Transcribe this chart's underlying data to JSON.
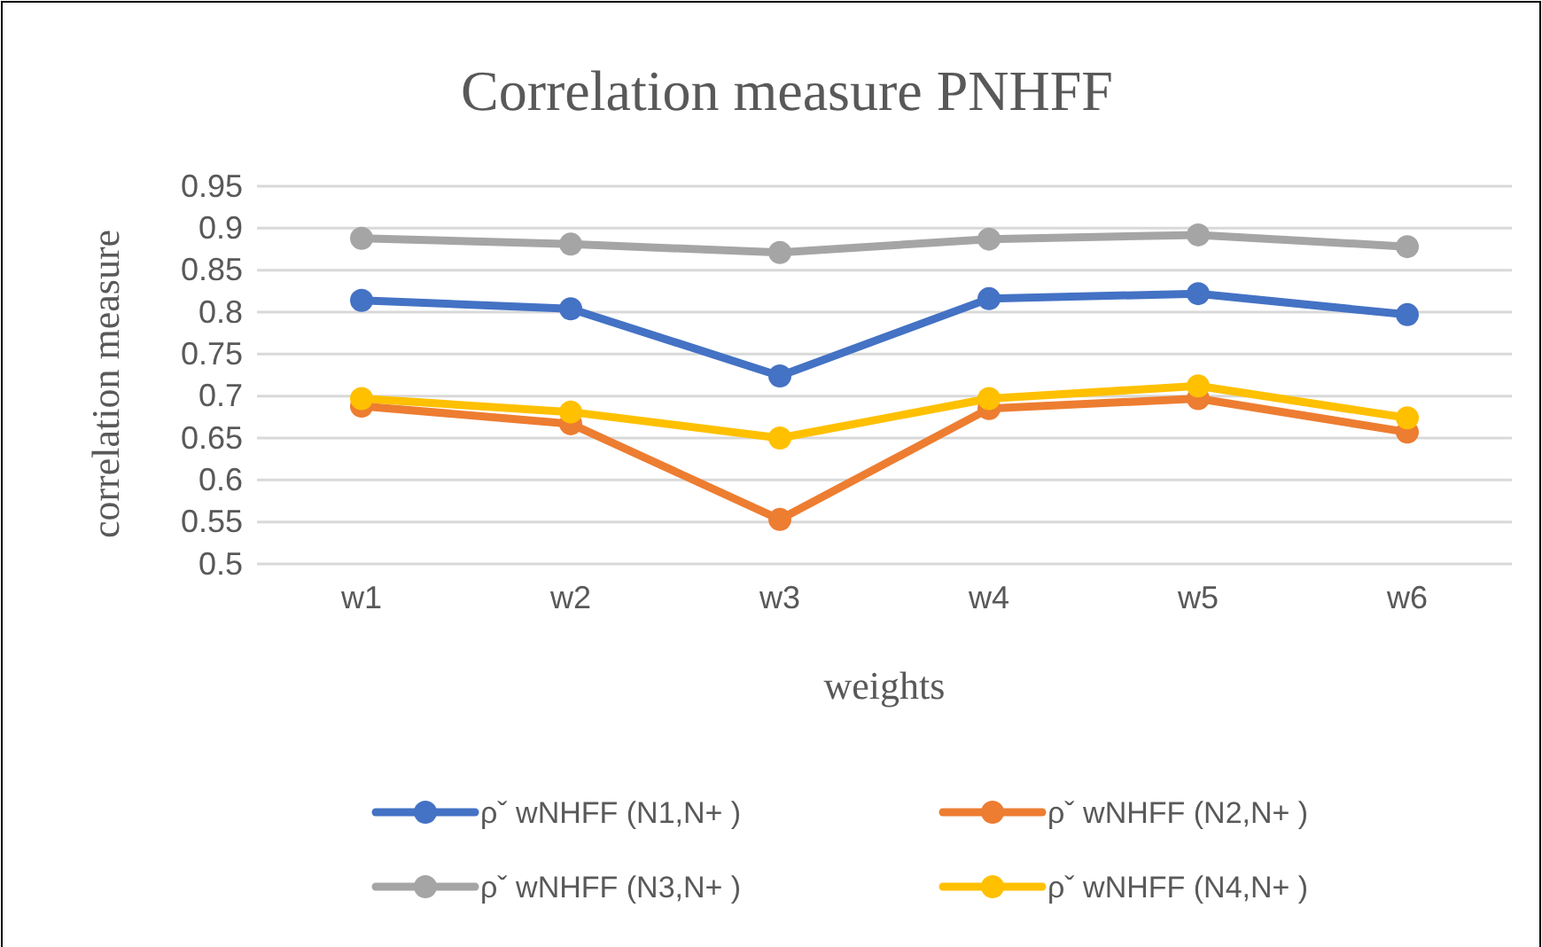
{
  "chart_data": {
    "type": "line",
    "title": "Correlation measure PNHFF",
    "xlabel": "weights",
    "ylabel": "correlation measure",
    "categories": [
      "w1",
      "w2",
      "w3",
      "w4",
      "w5",
      "w6"
    ],
    "series": [
      {
        "name": "ρˇ wNHFF (N1,N+ )",
        "color": "#4472c4",
        "values": [
          0.814,
          0.804,
          0.724,
          0.816,
          0.822,
          0.797
        ]
      },
      {
        "name": "ρˇ wNHFF (N2,N+ )",
        "color": "#ed7d31",
        "values": [
          0.688,
          0.667,
          0.553,
          0.685,
          0.697,
          0.657
        ]
      },
      {
        "name": "ρˇ wNHFF (N3,N+ )",
        "color": "#a5a5a5",
        "values": [
          0.888,
          0.881,
          0.871,
          0.887,
          0.892,
          0.878
        ]
      },
      {
        "name": "ρˇ wNHFF (N4,N+ )",
        "color": "#ffc000",
        "values": [
          0.697,
          0.681,
          0.65,
          0.697,
          0.712,
          0.674
        ]
      }
    ],
    "ylim": [
      0.5,
      0.95
    ],
    "yticks": [
      0.5,
      0.55,
      0.6,
      0.65,
      0.7,
      0.75,
      0.8,
      0.85,
      0.9,
      0.95
    ],
    "grid": "y",
    "legend": "bottom",
    "marker": "circle",
    "line_style": "solid"
  }
}
